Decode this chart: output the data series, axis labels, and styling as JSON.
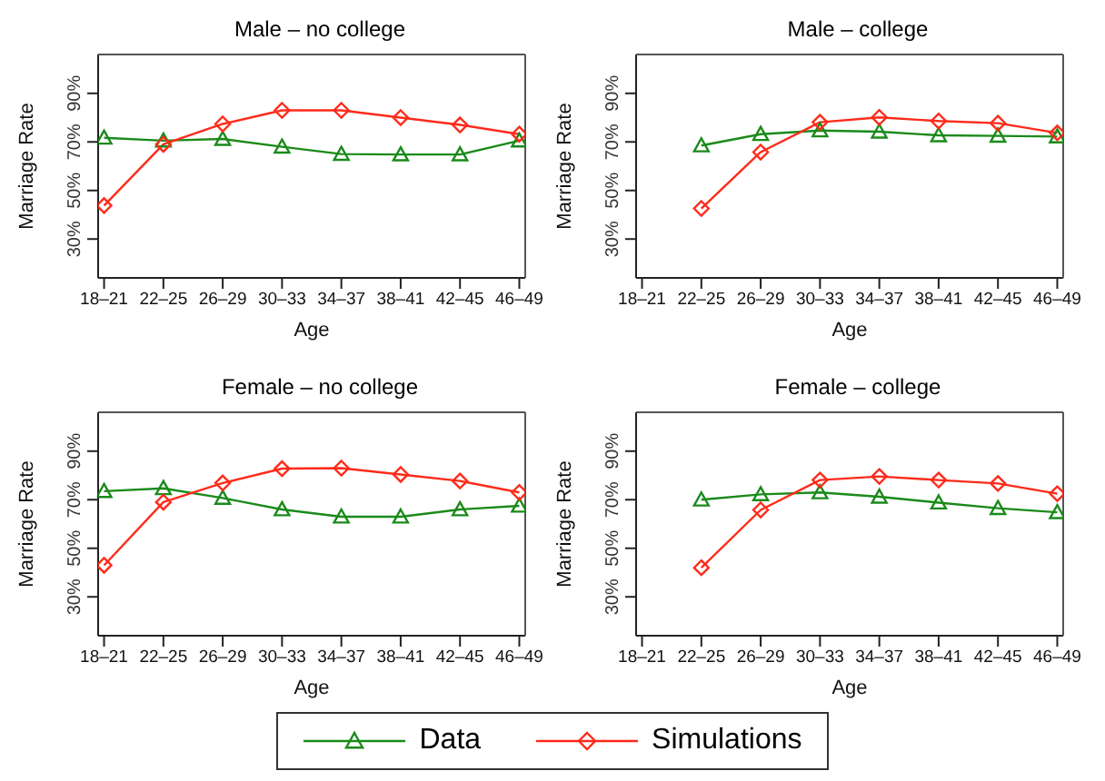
{
  "chart_data": [
    {
      "type": "line",
      "title": "Male – no college",
      "xlabel": "Age",
      "ylabel": "Marriage Rate",
      "categories": [
        "18–21",
        "22–25",
        "26–29",
        "30–33",
        "34–37",
        "38–41",
        "42–45",
        "46–49"
      ],
      "ylim": [
        14,
        106
      ],
      "yticks": [
        {
          "value": 30,
          "label": "30%"
        },
        {
          "value": 50,
          "label": "50%"
        },
        {
          "value": 70,
          "label": "70%"
        },
        {
          "value": 90,
          "label": "90%"
        }
      ],
      "grid": false,
      "legend": "bottom",
      "series": [
        {
          "name": "Data",
          "color": "#1a8a1a",
          "marker": "triangle",
          "values": [
            71.7,
            70.5,
            71.2,
            68,
            65,
            64.8,
            64.8,
            70.5
          ]
        },
        {
          "name": "Simulations",
          "color": "#ff2a1a",
          "marker": "diamond",
          "values": [
            43.8,
            69,
            77.4,
            83,
            83,
            80,
            77,
            73.2
          ]
        }
      ]
    },
    {
      "type": "line",
      "title": "Male – college",
      "xlabel": "Age",
      "ylabel": "Marriage Rate",
      "categories": [
        "18–21",
        "22–25",
        "26–29",
        "30–33",
        "34–37",
        "38–41",
        "42–45",
        "46–49"
      ],
      "ylim": [
        14,
        106
      ],
      "yticks": [
        {
          "value": 30,
          "label": "30%"
        },
        {
          "value": 50,
          "label": "50%"
        },
        {
          "value": 70,
          "label": "70%"
        },
        {
          "value": 90,
          "label": "90%"
        }
      ],
      "grid": false,
      "series": [
        {
          "color": "#1a8a1a",
          "marker": "triangle",
          "values": [
            null,
            68.5,
            73.2,
            74.7,
            74.2,
            72.7,
            72.5,
            72.2
          ]
        },
        {
          "color": "#ff2a1a",
          "marker": "diamond",
          "values": [
            null,
            42.6,
            65.8,
            78.1,
            80.1,
            78.6,
            77.7,
            73.7
          ]
        }
      ]
    },
    {
      "type": "line",
      "title": "Female – no college",
      "xlabel": "Age",
      "ylabel": "Marriage Rate",
      "categories": [
        "18–21",
        "22–25",
        "26–29",
        "30–33",
        "34–37",
        "38–41",
        "42–45",
        "46–49"
      ],
      "ylim": [
        14,
        106
      ],
      "yticks": [
        {
          "value": 30,
          "label": "30%"
        },
        {
          "value": 50,
          "label": "50%"
        },
        {
          "value": 70,
          "label": "70%"
        },
        {
          "value": 90,
          "label": "90%"
        }
      ],
      "grid": false,
      "series": [
        {
          "color": "#1a8a1a",
          "marker": "triangle",
          "values": [
            73.5,
            74.7,
            70.7,
            66,
            63,
            63,
            66,
            67.5
          ]
        },
        {
          "color": "#ff2a1a",
          "marker": "diamond",
          "values": [
            43,
            69,
            76.9,
            82.8,
            83,
            80.4,
            77.7,
            73
          ]
        }
      ]
    },
    {
      "type": "line",
      "title": "Female – college",
      "xlabel": "Age",
      "ylabel": "Marriage Rate",
      "categories": [
        "18–21",
        "22–25",
        "26–29",
        "30–33",
        "34–37",
        "38–41",
        "42–45",
        "46–49"
      ],
      "ylim": [
        14,
        106
      ],
      "yticks": [
        {
          "value": 30,
          "label": "30%"
        },
        {
          "value": 50,
          "label": "50%"
        },
        {
          "value": 70,
          "label": "70%"
        },
        {
          "value": 90,
          "label": "90%"
        }
      ],
      "grid": false,
      "series": [
        {
          "color": "#1a8a1a",
          "marker": "triangle",
          "values": [
            null,
            70,
            72.2,
            73,
            71.2,
            68.8,
            66.5,
            64.8
          ]
        },
        {
          "color": "#ff2a1a",
          "marker": "diamond",
          "values": [
            null,
            42,
            65.8,
            78.1,
            79.6,
            78.1,
            76.7,
            72.5
          ]
        }
      ]
    }
  ]
}
